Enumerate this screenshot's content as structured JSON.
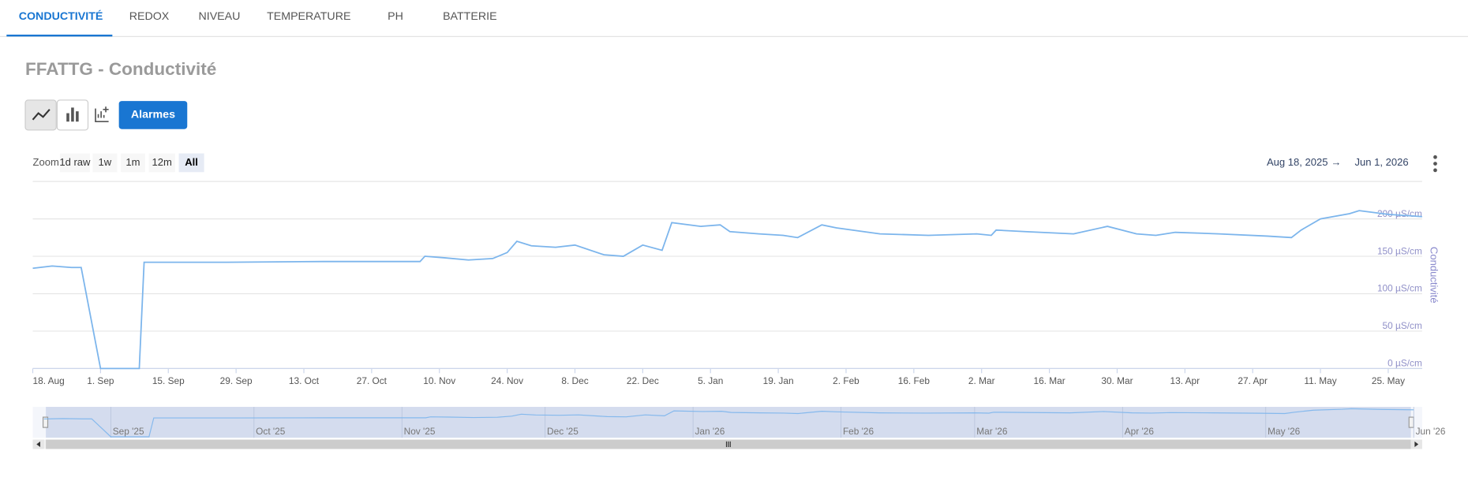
{
  "tabs": [
    "CONDUCTIVITÉ",
    "REDOX",
    "NIVEAU",
    "TEMPERATURE",
    "PH",
    "BATTERIE"
  ],
  "title": "FFATTG - Conductivité",
  "buttons": {
    "alarms": "Alarmes"
  },
  "zoom": {
    "label": "Zoom",
    "options": [
      "1d raw",
      "1w",
      "1m",
      "12m",
      "All"
    ]
  },
  "range": {
    "from": "Aug 18, 2025",
    "arrow": "→",
    "to": "Jun 1, 2026"
  },
  "chart": {
    "type": "line",
    "y_axis_title": "Conductivité",
    "ylim": [
      0,
      250
    ],
    "yticks": [
      {
        "value": 0,
        "label": "0 µS/cm"
      },
      {
        "value": 50,
        "label": "50 µS/cm"
      },
      {
        "value": 100,
        "label": "100 µS/cm"
      },
      {
        "value": 150,
        "label": "150 µS/cm"
      },
      {
        "value": 200,
        "label": "200 µS/cm"
      },
      {
        "value": 250,
        "label": ""
      }
    ],
    "xlim": [
      "2025-08-18",
      "2026-06-01"
    ],
    "xticks": [
      {
        "value": "2025-08-18",
        "label": "18. Aug"
      },
      {
        "value": "2025-09-01",
        "label": "1. Sep"
      },
      {
        "value": "2025-09-15",
        "label": "15. Sep"
      },
      {
        "value": "2025-09-29",
        "label": "29. Sep"
      },
      {
        "value": "2025-10-13",
        "label": "13. Oct"
      },
      {
        "value": "2025-10-27",
        "label": "27. Oct"
      },
      {
        "value": "2025-11-10",
        "label": "10. Nov"
      },
      {
        "value": "2025-11-24",
        "label": "24. Nov"
      },
      {
        "value": "2025-12-08",
        "label": "8. Dec"
      },
      {
        "value": "2025-12-22",
        "label": "22. Dec"
      },
      {
        "value": "2026-01-05",
        "label": "5. Jan"
      },
      {
        "value": "2026-01-19",
        "label": "19. Jan"
      },
      {
        "value": "2026-02-02",
        "label": "2. Feb"
      },
      {
        "value": "2026-02-16",
        "label": "16. Feb"
      },
      {
        "value": "2026-03-02",
        "label": "2. Mar"
      },
      {
        "value": "2026-03-16",
        "label": "16. Mar"
      },
      {
        "value": "2026-03-30",
        "label": "30. Mar"
      },
      {
        "value": "2026-04-13",
        "label": "13. Apr"
      },
      {
        "value": "2026-04-27",
        "label": "27. Apr"
      },
      {
        "value": "2026-05-11",
        "label": "11. May"
      },
      {
        "value": "2026-05-25",
        "label": "25. May"
      }
    ],
    "x": [
      "2025-08-18",
      "2025-08-22",
      "2025-08-26",
      "2025-08-28",
      "2025-09-01",
      "2025-09-09",
      "2025-09-10",
      "2025-09-27",
      "2025-10-17",
      "2025-11-06",
      "2025-11-07",
      "2025-11-11",
      "2025-11-16",
      "2025-11-21",
      "2025-11-24",
      "2025-11-26",
      "2025-11-29",
      "2025-12-04",
      "2025-12-08",
      "2025-12-14",
      "2025-12-18",
      "2025-12-22",
      "2025-12-26",
      "2025-12-28",
      "2026-01-03",
      "2026-01-07",
      "2026-01-09",
      "2026-01-15",
      "2026-01-20",
      "2026-01-23",
      "2026-01-28",
      "2026-01-31",
      "2026-02-09",
      "2026-02-19",
      "2026-03-01",
      "2026-03-04",
      "2026-03-05",
      "2026-03-11",
      "2026-03-21",
      "2026-03-28",
      "2026-04-03",
      "2026-04-07",
      "2026-04-11",
      "2026-04-20",
      "2026-04-30",
      "2026-05-05",
      "2026-05-07",
      "2026-05-11",
      "2026-05-17",
      "2026-05-19",
      "2026-05-25",
      "2026-06-01"
    ],
    "series": [
      {
        "name": "Conductivité",
        "color": "#7cb5ec",
        "values": [
          134,
          137,
          135,
          135,
          0,
          0,
          142,
          142,
          143,
          143,
          150,
          148,
          145,
          147,
          155,
          170,
          164,
          162,
          165,
          152,
          150,
          165,
          158,
          195,
          190,
          192,
          183,
          180,
          178,
          175,
          192,
          188,
          180,
          178,
          180,
          178,
          185,
          183,
          180,
          190,
          180,
          178,
          182,
          180,
          177,
          175,
          185,
          200,
          207,
          211,
          206,
          203
        ]
      }
    ]
  },
  "navigator": {
    "ticks": [
      {
        "value": "2025-09-01",
        "label": "Sep '25"
      },
      {
        "value": "2025-10-01",
        "label": "Oct '25"
      },
      {
        "value": "2025-11-01",
        "label": "Nov '25"
      },
      {
        "value": "2025-12-01",
        "label": "Dec '25"
      },
      {
        "value": "2026-01-01",
        "label": "Jan '26"
      },
      {
        "value": "2026-02-01",
        "label": "Feb '26"
      },
      {
        "value": "2026-03-01",
        "label": "Mar '26"
      },
      {
        "value": "2026-04-01",
        "label": "Apr '26"
      },
      {
        "value": "2026-05-01",
        "label": "May '26"
      },
      {
        "value": "2026-06-01",
        "label": "Jun '26"
      }
    ]
  }
}
